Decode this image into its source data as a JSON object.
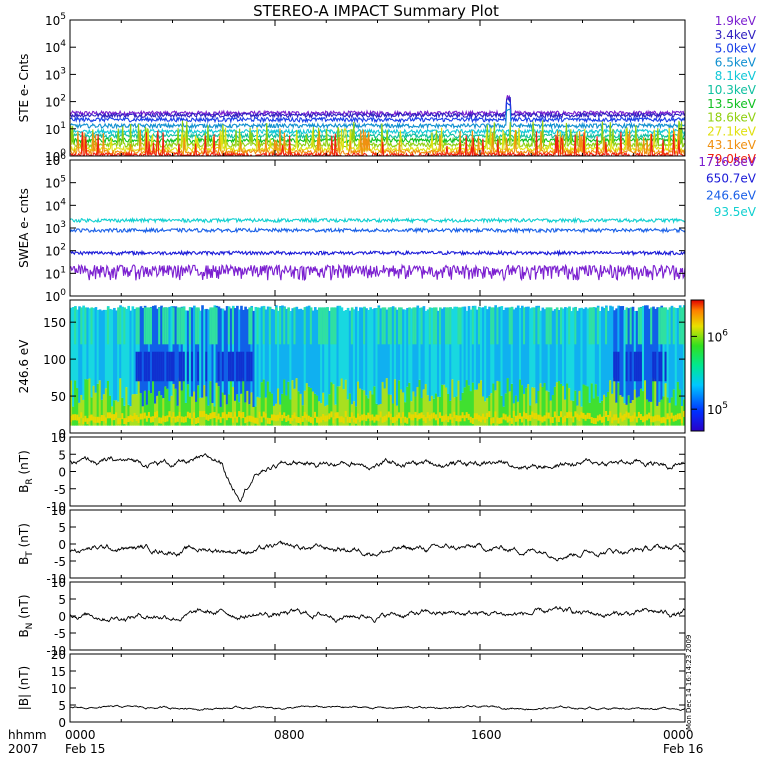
{
  "title": "STEREO-A IMPACT Summary Plot",
  "footer": {
    "label_top": "hhmm",
    "label_bottom": "2007",
    "ticks": [
      "0000",
      "0800",
      "1600",
      "0000"
    ],
    "dates": [
      "Feb 15",
      "Feb 16"
    ]
  },
  "side_note": "Mon Dec 14 16:14:23 2009",
  "colors": {
    "purple": "#7b1fd0",
    "blue_dark": "#1a1ad8",
    "blue": "#2050f0",
    "cyan": "#10b8c8",
    "aqua": "#10d8d0",
    "green": "#10c020",
    "lime": "#80d010",
    "yellow": "#e0e010",
    "orange": "#f08010",
    "red": "#f02010"
  },
  "chart_data": [
    {
      "type": "line",
      "id": "ste",
      "ylabel": "STE e- Cnts",
      "yscale": "log",
      "ylim": [
        1,
        100000
      ],
      "yticks": [
        1,
        10,
        100,
        1000,
        10000,
        100000
      ],
      "xlim": [
        0,
        24
      ],
      "series": [
        {
          "name": "1.9keV",
          "color": "#7b1fd0",
          "level": 38
        },
        {
          "name": "3.4keV",
          "color": "#3020c0",
          "level": 32
        },
        {
          "name": "5.0keV",
          "color": "#1a40e8",
          "level": 22
        },
        {
          "name": "6.5keV",
          "color": "#1090d0",
          "level": 13
        },
        {
          "name": "8.1keV",
          "color": "#10c8d8",
          "level": 8
        },
        {
          "name": "10.3keV",
          "color": "#10c0a0",
          "level": 5.5
        },
        {
          "name": "13.5keV",
          "color": "#10c020",
          "level": 3.8
        },
        {
          "name": "18.6keV",
          "color": "#90d010",
          "level": 2.6
        },
        {
          "name": "27.1keV",
          "color": "#e0e010",
          "level": 1.8
        },
        {
          "name": "43.1keV",
          "color": "#f09010",
          "level": 1.4
        },
        {
          "name": "79.0keV",
          "color": "#f02010",
          "level": 1.1
        }
      ]
    },
    {
      "type": "line",
      "id": "swea",
      "ylabel": "SWEA e- cnts",
      "yscale": "log",
      "ylim": [
        1,
        1000000
      ],
      "yticks": [
        1,
        10,
        100,
        1000,
        10000,
        100000,
        1000000
      ],
      "xlim": [
        0,
        24
      ],
      "series": [
        {
          "name": "1716.8eV",
          "color": "#7b1fd0",
          "level": 14
        },
        {
          "name": "650.7eV",
          "color": "#1a1ad8",
          "level": 80
        },
        {
          "name": "246.6eV",
          "color": "#1a60e8",
          "level": 800
        },
        {
          "name": "93.5eV",
          "color": "#10d0d0",
          "level": 2200
        }
      ]
    },
    {
      "type": "heatmap",
      "id": "pad",
      "ylabel": "246.6 eV",
      "ylim": [
        0,
        180
      ],
      "yticks": [
        0,
        50,
        100,
        150
      ],
      "xlim": [
        0,
        24
      ],
      "colorbar_ticks": [
        {
          "label": "10",
          "exp": "5",
          "value": 100000
        },
        {
          "label": "10",
          "exp": "6",
          "value": 1000000
        }
      ]
    },
    {
      "type": "line",
      "id": "br",
      "ylabel": "B",
      "ylabel_sub": "R",
      "ylabel_unit": " (nT)",
      "ylim": [
        -10,
        10
      ],
      "yticks": [
        -10,
        -5,
        0,
        5,
        10
      ],
      "xlim": [
        0,
        24
      ],
      "baseline": 2.5
    },
    {
      "type": "line",
      "id": "bt",
      "ylabel": "B",
      "ylabel_sub": "T",
      "ylabel_unit": " (nT)",
      "ylim": [
        -10,
        10
      ],
      "yticks": [
        -10,
        -5,
        0,
        5,
        10
      ],
      "xlim": [
        0,
        24
      ],
      "baseline": -1.5
    },
    {
      "type": "line",
      "id": "bn",
      "ylabel": "B",
      "ylabel_sub": "N",
      "ylabel_unit": " (nT)",
      "ylim": [
        -10,
        10
      ],
      "yticks": [
        -10,
        -5,
        0,
        5,
        10
      ],
      "xlim": [
        0,
        24
      ],
      "baseline": 0.5
    },
    {
      "type": "line",
      "id": "bmag",
      "ylabel": "|B| (nT)",
      "ylim": [
        0,
        20
      ],
      "yticks": [
        0,
        5,
        10,
        15,
        20
      ],
      "xlim": [
        0,
        24
      ],
      "baseline": 4.2
    }
  ]
}
